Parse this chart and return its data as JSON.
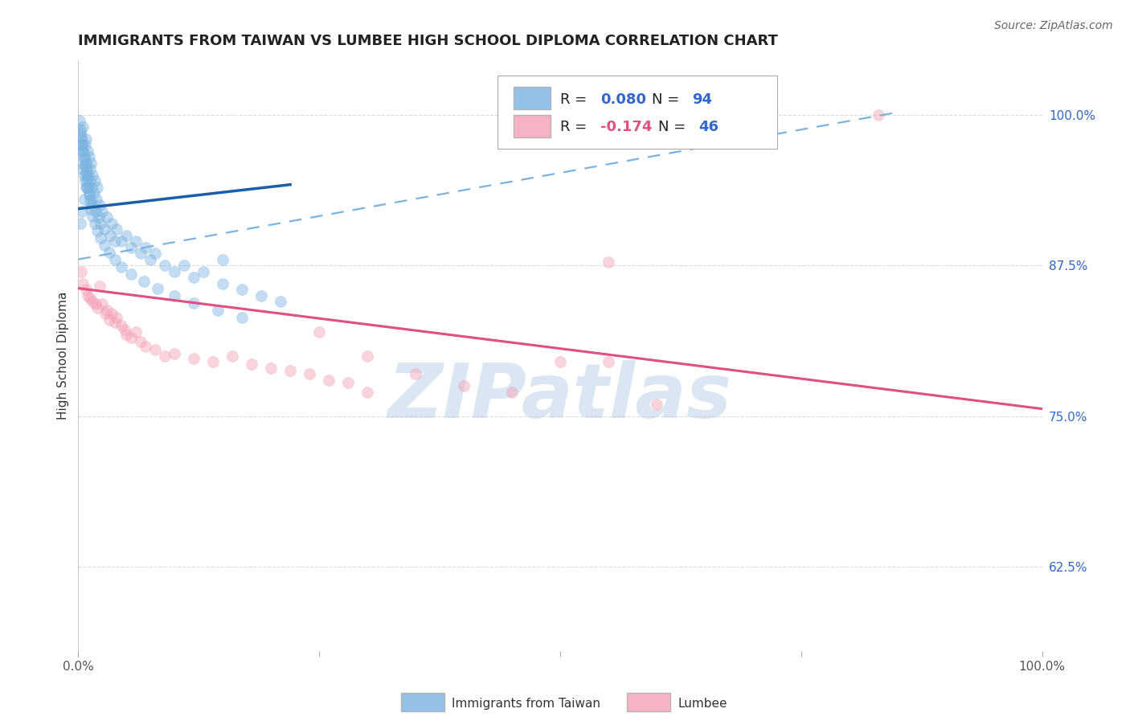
{
  "title": "IMMIGRANTS FROM TAIWAN VS LUMBEE HIGH SCHOOL DIPLOMA CORRELATION CHART",
  "source": "Source: ZipAtlas.com",
  "ylabel": "High School Diploma",
  "yticks": [
    0.625,
    0.75,
    0.875,
    1.0
  ],
  "ytick_labels": [
    "62.5%",
    "75.0%",
    "87.5%",
    "100.0%"
  ],
  "xlim": [
    0.0,
    1.0
  ],
  "ylim": [
    0.555,
    1.045
  ],
  "watermark": "ZIPatlas",
  "taiwan_color": "#7ab3e0",
  "lumbee_color": "#f4a0b5",
  "taiwan_trendline_color": "#1a5fa8",
  "lumbee_trendline_color": "#e05080",
  "dashed_line_color": "#7ab3e0",
  "taiwan_x": [
    0.001,
    0.002,
    0.002,
    0.003,
    0.003,
    0.004,
    0.004,
    0.005,
    0.005,
    0.006,
    0.006,
    0.007,
    0.007,
    0.008,
    0.008,
    0.009,
    0.009,
    0.01,
    0.01,
    0.011,
    0.011,
    0.012,
    0.012,
    0.013,
    0.013,
    0.014,
    0.015,
    0.015,
    0.016,
    0.017,
    0.018,
    0.019,
    0.02,
    0.021,
    0.022,
    0.023,
    0.025,
    0.027,
    0.03,
    0.033,
    0.035,
    0.038,
    0.04,
    0.045,
    0.05,
    0.055,
    0.06,
    0.065,
    0.07,
    0.075,
    0.08,
    0.09,
    0.1,
    0.11,
    0.12,
    0.13,
    0.15,
    0.17,
    0.19,
    0.21,
    0.001,
    0.002,
    0.003,
    0.004,
    0.005,
    0.006,
    0.007,
    0.008,
    0.009,
    0.01,
    0.011,
    0.012,
    0.013,
    0.015,
    0.017,
    0.02,
    0.023,
    0.027,
    0.032,
    0.038,
    0.045,
    0.055,
    0.068,
    0.082,
    0.1,
    0.12,
    0.145,
    0.17,
    0.002,
    0.004,
    0.006,
    0.008,
    0.01,
    0.15
  ],
  "taiwan_y": [
    0.975,
    0.985,
    0.97,
    0.98,
    0.96,
    0.975,
    0.955,
    0.97,
    0.99,
    0.965,
    0.95,
    0.975,
    0.945,
    0.96,
    0.98,
    0.955,
    0.94,
    0.97,
    0.95,
    0.965,
    0.935,
    0.955,
    0.945,
    0.96,
    0.93,
    0.94,
    0.95,
    0.925,
    0.935,
    0.945,
    0.92,
    0.93,
    0.94,
    0.915,
    0.925,
    0.91,
    0.92,
    0.905,
    0.915,
    0.9,
    0.91,
    0.895,
    0.905,
    0.895,
    0.9,
    0.89,
    0.895,
    0.885,
    0.89,
    0.88,
    0.885,
    0.875,
    0.87,
    0.875,
    0.865,
    0.87,
    0.86,
    0.855,
    0.85,
    0.845,
    0.995,
    0.988,
    0.982,
    0.976,
    0.97,
    0.964,
    0.958,
    0.952,
    0.946,
    0.94,
    0.934,
    0.928,
    0.922,
    0.916,
    0.91,
    0.904,
    0.898,
    0.892,
    0.886,
    0.88,
    0.874,
    0.868,
    0.862,
    0.856,
    0.85,
    0.844,
    0.838,
    0.832,
    0.91,
    0.92,
    0.93,
    0.94,
    0.95,
    0.88
  ],
  "lumbee_x": [
    0.003,
    0.005,
    0.008,
    0.01,
    0.012,
    0.015,
    0.018,
    0.02,
    0.022,
    0.025,
    0.028,
    0.03,
    0.032,
    0.035,
    0.038,
    0.04,
    0.045,
    0.048,
    0.05,
    0.055,
    0.06,
    0.065,
    0.07,
    0.08,
    0.09,
    0.1,
    0.12,
    0.14,
    0.16,
    0.18,
    0.2,
    0.22,
    0.24,
    0.26,
    0.28,
    0.3,
    0.35,
    0.4,
    0.45,
    0.5,
    0.55,
    0.6,
    0.83,
    0.25,
    0.3,
    0.55
  ],
  "lumbee_y": [
    0.87,
    0.86,
    0.855,
    0.85,
    0.848,
    0.845,
    0.843,
    0.84,
    0.858,
    0.843,
    0.835,
    0.838,
    0.83,
    0.835,
    0.828,
    0.832,
    0.825,
    0.822,
    0.818,
    0.815,
    0.82,
    0.812,
    0.808,
    0.805,
    0.8,
    0.802,
    0.798,
    0.795,
    0.8,
    0.793,
    0.79,
    0.788,
    0.785,
    0.78,
    0.778,
    0.8,
    0.785,
    0.775,
    0.77,
    0.795,
    0.795,
    0.76,
    1.0,
    0.82,
    0.77,
    0.878
  ],
  "taiwan_trend_x": [
    0.0,
    0.22
  ],
  "taiwan_trend_y": [
    0.922,
    0.942
  ],
  "lumbee_trend_x": [
    0.0,
    1.0
  ],
  "lumbee_trend_y": [
    0.856,
    0.756
  ],
  "dashed_trend_x": [
    0.0,
    0.85
  ],
  "dashed_trend_y": [
    0.88,
    1.002
  ],
  "legend_fontsize": 13,
  "title_fontsize": 13,
  "axis_label_fontsize": 11,
  "tick_fontsize": 11,
  "source_fontsize": 10,
  "scatter_size": 100,
  "scatter_alpha": 0.45,
  "scatter_linewidths": 0.5,
  "grid_color": "#cccccc",
  "background_color": "#ffffff",
  "legend_taiwan_label": "Immigrants from Taiwan",
  "legend_lumbee_label": "Lumbee"
}
